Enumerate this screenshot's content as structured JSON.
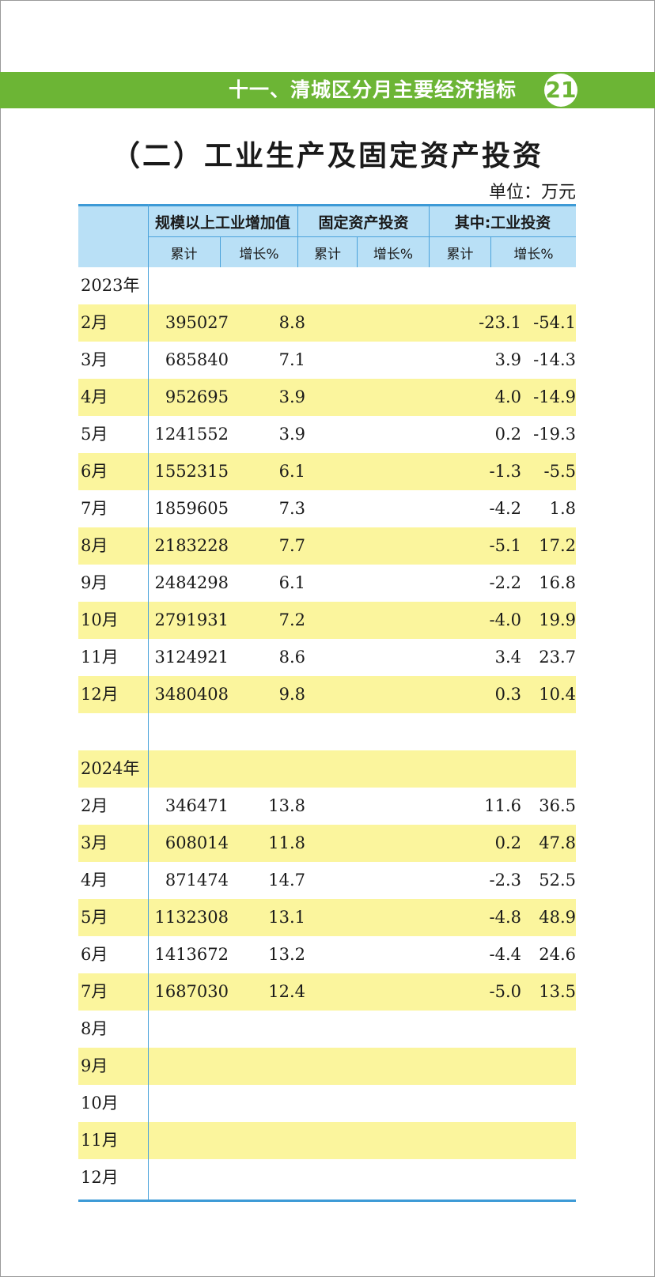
{
  "header": {
    "section_title": "十一、清城区分月主要经济指标",
    "page_number": "21"
  },
  "title": "（二）工业生产及固定资产投资",
  "unit": "单位：万元",
  "table": {
    "group_headers": [
      "规模以上工业增加值",
      "固定资产投资",
      "其中:工业投资"
    ],
    "sub_headers": [
      "累计",
      "增长%",
      "累计",
      "增长%",
      "累计",
      "增长%"
    ],
    "rows": [
      {
        "label": "2023年",
        "shade": false,
        "cum": "",
        "g1": "",
        "g2": "",
        "g3": ""
      },
      {
        "label": "2月",
        "shade": true,
        "cum": "395027",
        "g1": "8.8",
        "g2": "-23.1",
        "g3": "-54.1"
      },
      {
        "label": "3月",
        "shade": false,
        "cum": "685840",
        "g1": "7.1",
        "g2": "3.9",
        "g3": "-14.3"
      },
      {
        "label": "4月",
        "shade": true,
        "cum": "952695",
        "g1": "3.9",
        "g2": "4.0",
        "g3": "-14.9"
      },
      {
        "label": "5月",
        "shade": false,
        "cum": "1241552",
        "g1": "3.9",
        "g2": "0.2",
        "g3": "-19.3"
      },
      {
        "label": "6月",
        "shade": true,
        "cum": "1552315",
        "g1": "6.1",
        "g2": "-1.3",
        "g3": "-5.5"
      },
      {
        "label": "7月",
        "shade": false,
        "cum": "1859605",
        "g1": "7.3",
        "g2": "-4.2",
        "g3": "1.8"
      },
      {
        "label": "8月",
        "shade": true,
        "cum": "2183228",
        "g1": "7.7",
        "g2": "-5.1",
        "g3": "17.2"
      },
      {
        "label": "9月",
        "shade": false,
        "cum": "2484298",
        "g1": "6.1",
        "g2": "-2.2",
        "g3": "16.8"
      },
      {
        "label": "10月",
        "shade": true,
        "cum": "2791931",
        "g1": "7.2",
        "g2": "-4.0",
        "g3": "19.9"
      },
      {
        "label": "11月",
        "shade": false,
        "cum": "3124921",
        "g1": "8.6",
        "g2": "3.4",
        "g3": "23.7"
      },
      {
        "label": "12月",
        "shade": true,
        "cum": "3480408",
        "g1": "9.8",
        "g2": "0.3",
        "g3": "10.4"
      },
      {
        "label": "",
        "shade": false,
        "cum": "",
        "g1": "",
        "g2": "",
        "g3": ""
      },
      {
        "label": "2024年",
        "shade": true,
        "cum": "",
        "g1": "",
        "g2": "",
        "g3": ""
      },
      {
        "label": "2月",
        "shade": false,
        "cum": "346471",
        "g1": "13.8",
        "g2": "11.6",
        "g3": "36.5"
      },
      {
        "label": "3月",
        "shade": true,
        "cum": "608014",
        "g1": "11.8",
        "g2": "0.2",
        "g3": "47.8"
      },
      {
        "label": "4月",
        "shade": false,
        "cum": "871474",
        "g1": "14.7",
        "g2": "-2.3",
        "g3": "52.5"
      },
      {
        "label": "5月",
        "shade": true,
        "cum": "1132308",
        "g1": "13.1",
        "g2": "-4.8",
        "g3": "48.9"
      },
      {
        "label": "6月",
        "shade": false,
        "cum": "1413672",
        "g1": "13.2",
        "g2": "-4.4",
        "g3": "24.6"
      },
      {
        "label": "7月",
        "shade": true,
        "cum": "1687030",
        "g1": "12.4",
        "g2": "-5.0",
        "g3": "13.5"
      },
      {
        "label": "8月",
        "shade": false,
        "cum": "",
        "g1": "",
        "g2": "",
        "g3": ""
      },
      {
        "label": "9月",
        "shade": true,
        "cum": "",
        "g1": "",
        "g2": "",
        "g3": ""
      },
      {
        "label": "10月",
        "shade": false,
        "cum": "",
        "g1": "",
        "g2": "",
        "g3": ""
      },
      {
        "label": "11月",
        "shade": true,
        "cum": "",
        "g1": "",
        "g2": "",
        "g3": ""
      },
      {
        "label": "12月",
        "shade": false,
        "cum": "",
        "g1": "",
        "g2": "",
        "g3": ""
      }
    ]
  },
  "colors": {
    "header_green": "#6cb535",
    "table_header_blue": "#b9e0f6",
    "rule_blue": "#3d9ad6",
    "row_shade_yellow": "#fbf59d"
  }
}
